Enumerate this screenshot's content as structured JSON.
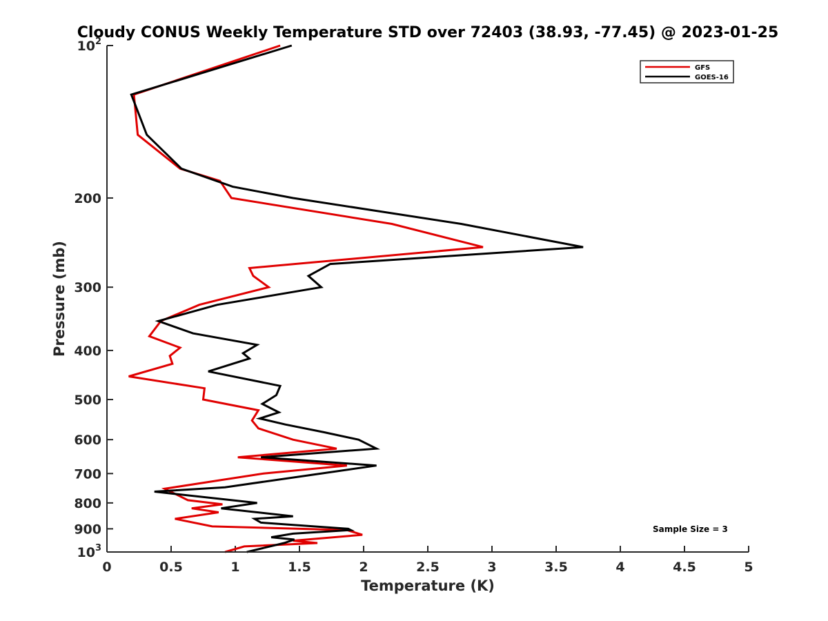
{
  "chart_data": {
    "type": "line",
    "title": "Cloudy CONUS Weekly Temperature STD over 72403 (38.93, -77.45) @ 2023-01-25",
    "xlabel": "Temperature (K)",
    "ylabel": "Pressure (mb)",
    "xlim": [
      0,
      5
    ],
    "ylim": [
      100,
      1000
    ],
    "y_scale": "log",
    "y_reversed": true,
    "grid": false,
    "legend_position": "top-right",
    "x_ticks": [
      0,
      0.5,
      1,
      1.5,
      2,
      2.5,
      3,
      3.5,
      4,
      4.5,
      5
    ],
    "x_tick_labels": [
      "0",
      "0.5",
      "1",
      "1.5",
      "2",
      "2.5",
      "3",
      "3.5",
      "4",
      "4.5",
      "5"
    ],
    "y_ticks": [
      100,
      200,
      300,
      400,
      500,
      600,
      700,
      800,
      900,
      1000
    ],
    "y_tick_labels": [
      {
        "base": "10",
        "sup": "2"
      },
      {
        "base": "200",
        "sup": ""
      },
      {
        "base": "300",
        "sup": ""
      },
      {
        "base": "400",
        "sup": ""
      },
      {
        "base": "500",
        "sup": ""
      },
      {
        "base": "600",
        "sup": ""
      },
      {
        "base": "700",
        "sup": ""
      },
      {
        "base": "800",
        "sup": ""
      },
      {
        "base": "900",
        "sup": ""
      },
      {
        "base": "10",
        "sup": "3"
      }
    ],
    "series": [
      {
        "name": "GFS",
        "color": "#e00000",
        "points": [
          [
            1.35,
            100
          ],
          [
            0.21,
            125
          ],
          [
            0.24,
            150
          ],
          [
            0.57,
            175
          ],
          [
            0.88,
            185
          ],
          [
            0.97,
            200
          ],
          [
            2.22,
            225
          ],
          [
            2.93,
            250
          ],
          [
            1.11,
            275
          ],
          [
            1.14,
            285
          ],
          [
            1.26,
            300
          ],
          [
            0.72,
            325
          ],
          [
            0.42,
            350
          ],
          [
            0.33,
            375
          ],
          [
            0.57,
            395
          ],
          [
            0.49,
            410
          ],
          [
            0.51,
            425
          ],
          [
            0.17,
            450
          ],
          [
            0.76,
            475
          ],
          [
            0.75,
            500
          ],
          [
            1.18,
            525
          ],
          [
            1.13,
            550
          ],
          [
            1.18,
            570
          ],
          [
            1.45,
            600
          ],
          [
            1.79,
            625
          ],
          [
            1.02,
            650
          ],
          [
            1.87,
            675
          ],
          [
            1.22,
            700
          ],
          [
            0.45,
            750
          ],
          [
            0.63,
            790
          ],
          [
            0.9,
            805
          ],
          [
            0.66,
            820
          ],
          [
            0.87,
            835
          ],
          [
            0.53,
            860
          ],
          [
            0.82,
            890
          ],
          [
            1.87,
            905
          ],
          [
            1.99,
            925
          ],
          [
            1.45,
            950
          ],
          [
            1.64,
            960
          ],
          [
            1.07,
            975
          ],
          [
            0.92,
            1000
          ]
        ]
      },
      {
        "name": "GOES-16",
        "color": "#000000",
        "points": [
          [
            1.44,
            100
          ],
          [
            0.19,
            125
          ],
          [
            0.31,
            150
          ],
          [
            0.58,
            175
          ],
          [
            0.98,
            190
          ],
          [
            1.45,
            200
          ],
          [
            2.76,
            225
          ],
          [
            3.71,
            250
          ],
          [
            1.74,
            270
          ],
          [
            1.57,
            285
          ],
          [
            1.67,
            300
          ],
          [
            0.86,
            325
          ],
          [
            0.4,
            350
          ],
          [
            0.67,
            370
          ],
          [
            1.17,
            390
          ],
          [
            1.06,
            405
          ],
          [
            1.11,
            415
          ],
          [
            0.79,
            440
          ],
          [
            1.35,
            470
          ],
          [
            1.32,
            490
          ],
          [
            1.21,
            510
          ],
          [
            1.34,
            530
          ],
          [
            1.19,
            545
          ],
          [
            1.39,
            560
          ],
          [
            1.69,
            580
          ],
          [
            1.96,
            600
          ],
          [
            2.1,
            625
          ],
          [
            1.2,
            650
          ],
          [
            2.1,
            675
          ],
          [
            1.58,
            705
          ],
          [
            0.92,
            745
          ],
          [
            0.37,
            760
          ],
          [
            1.17,
            800
          ],
          [
            0.89,
            820
          ],
          [
            1.45,
            850
          ],
          [
            1.15,
            860
          ],
          [
            1.2,
            875
          ],
          [
            1.88,
            900
          ],
          [
            1.9,
            905
          ],
          [
            1.45,
            920
          ],
          [
            1.28,
            935
          ],
          [
            1.46,
            945
          ],
          [
            1.38,
            960
          ],
          [
            1.09,
            1000
          ]
        ]
      }
    ],
    "annotation": "Sample Size = 3"
  }
}
